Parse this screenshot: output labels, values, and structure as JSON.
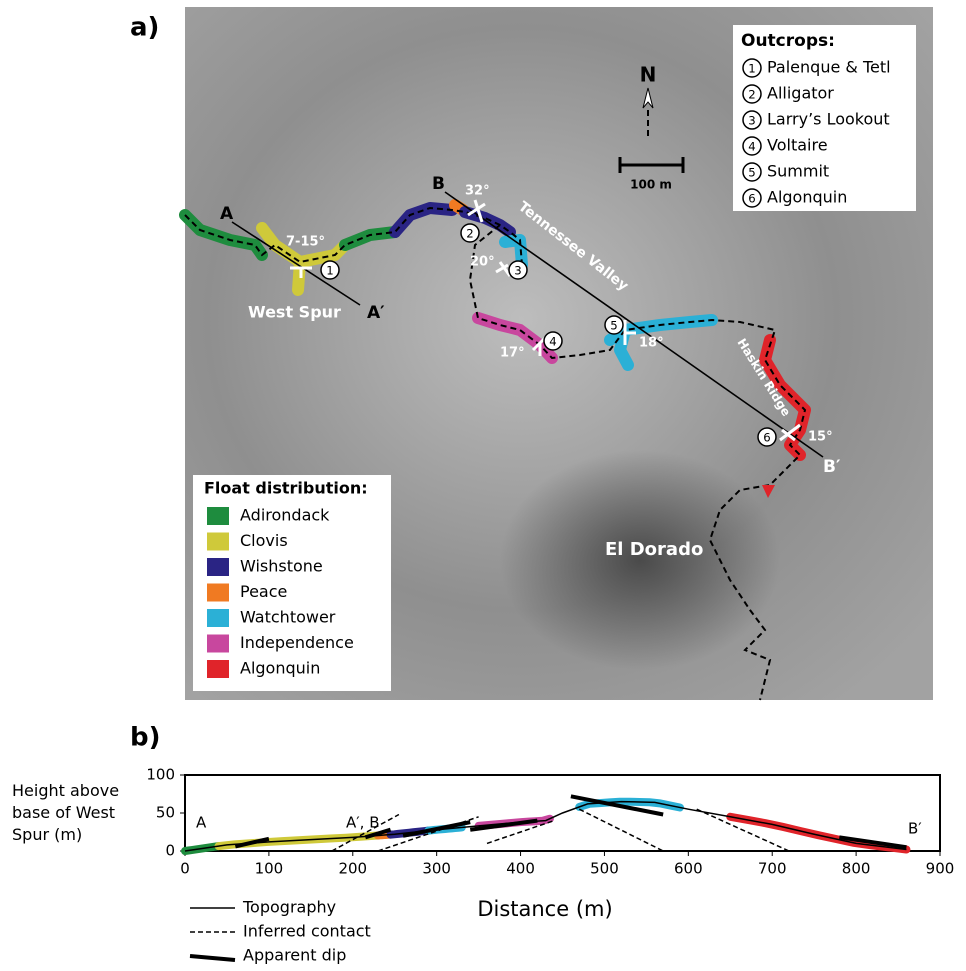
{
  "panel_a": {
    "label": "a)",
    "north": "N",
    "scale_bar": "100 m",
    "places": [
      "West Spur",
      "Tennessee Valley",
      "Haskin Ridge",
      "El Dorado"
    ],
    "sections": [
      "A",
      "A′",
      "B",
      "B′"
    ],
    "dips": [
      "7-15°",
      "32°",
      "20°",
      "17°",
      "18°",
      "15°"
    ],
    "outcrops": {
      "title": "Outcrops:",
      "items": [
        {
          "num": "1",
          "name": "Palenque & Tetl"
        },
        {
          "num": "2",
          "name": "Alligator"
        },
        {
          "num": "3",
          "name": "Larry’s Lookout"
        },
        {
          "num": "4",
          "name": "Voltaire"
        },
        {
          "num": "5",
          "name": "Summit"
        },
        {
          "num": "6",
          "name": "Algonquin"
        }
      ]
    },
    "float": {
      "title": "Float distribution:",
      "items": [
        {
          "name": "Adirondack",
          "color": "#1e8c3e"
        },
        {
          "name": "Clovis",
          "color": "#cfc93a"
        },
        {
          "name": "Wishstone",
          "color": "#2a2484"
        },
        {
          "name": "Peace",
          "color": "#f07a22"
        },
        {
          "name": "Watchtower",
          "color": "#2bb0d6"
        },
        {
          "name": "Independence",
          "color": "#c8479e"
        },
        {
          "name": "Algonquin",
          "color": "#e0242a"
        }
      ]
    }
  },
  "chart_data": {
    "type": "line",
    "label": "b)",
    "ylabel": "Height above base of West Spur (m)",
    "xlabel": "Distance (m)",
    "xlim": [
      0,
      900
    ],
    "xticks": [
      0,
      100,
      200,
      300,
      400,
      500,
      600,
      700,
      800,
      900
    ],
    "ylim": [
      0,
      100
    ],
    "yticks": [
      0,
      50,
      100
    ],
    "annotations": [
      "A",
      "A′, B",
      "B′"
    ],
    "series": [
      {
        "name": "Topography",
        "color": "#000000",
        "x": [
          0,
          50,
          100,
          200,
          250,
          300,
          350,
          400,
          430,
          450,
          480,
          520,
          560,
          600,
          650,
          700,
          750,
          800,
          860
        ],
        "values": [
          0,
          8,
          12,
          18,
          22,
          28,
          33,
          38,
          40,
          50,
          62,
          65,
          64,
          55,
          45,
          35,
          22,
          10,
          2
        ]
      }
    ],
    "bands": [
      {
        "color": "#1e8c3e",
        "x": [
          0,
          40
        ]
      },
      {
        "color": "#cfc93a",
        "x": [
          40,
          230
        ]
      },
      {
        "color": "#f07a22",
        "x": [
          230,
          245
        ]
      },
      {
        "color": "#2a2484",
        "x": [
          245,
          290
        ]
      },
      {
        "color": "#2bb0d6",
        "x": [
          290,
          330
        ]
      },
      {
        "color": "#c8479e",
        "x": [
          350,
          435
        ]
      },
      {
        "color": "#2bb0d6",
        "x": [
          470,
          590
        ]
      },
      {
        "color": "#e0242a",
        "x": [
          650,
          860
        ]
      }
    ],
    "contacts": {
      "name": "Inferred contact",
      "lines": [
        [
          175,
          0,
          255,
          48
        ],
        [
          230,
          0,
          350,
          45
        ],
        [
          360,
          10,
          440,
          40
        ],
        [
          470,
          55,
          570,
          0
        ],
        [
          610,
          55,
          720,
          0
        ]
      ]
    },
    "dips": {
      "name": "Apparent dip",
      "lines": [
        [
          60,
          6,
          100,
          16
        ],
        [
          215,
          18,
          245,
          28
        ],
        [
          260,
          20,
          340,
          38
        ],
        [
          340,
          28,
          420,
          40
        ],
        [
          460,
          72,
          570,
          48
        ],
        [
          780,
          18,
          860,
          5
        ]
      ]
    }
  }
}
